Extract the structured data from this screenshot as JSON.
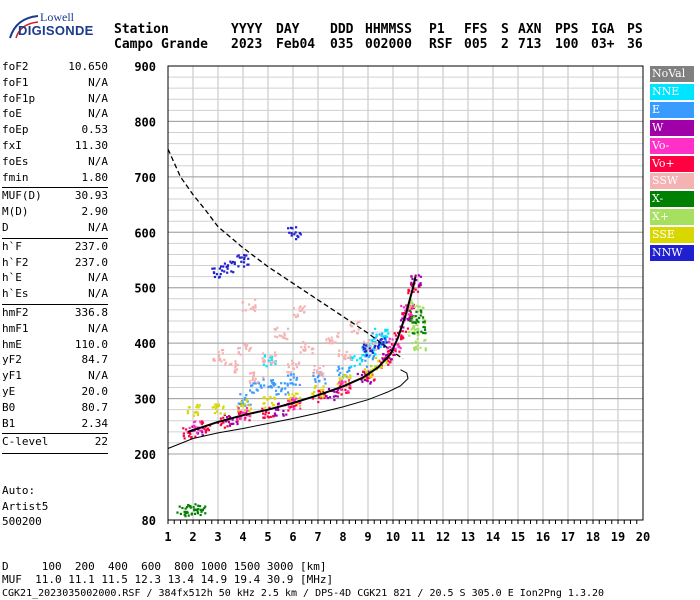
{
  "logo": {
    "line1": "Lowell",
    "line2": "DIGISONDE"
  },
  "header": {
    "row1": [
      "Station",
      "YYYY",
      "DAY",
      "DDD",
      "HHMMSS",
      "P1",
      "FFS",
      "S",
      "AXN",
      "PPS",
      "IGA",
      "PS"
    ],
    "row2": [
      "Campo Grande",
      "2023",
      "Feb04",
      "035",
      "002000",
      "RSF",
      "005",
      "2",
      "713",
      "100",
      "03+",
      "36"
    ]
  },
  "params": {
    "group1": [
      {
        "k": "foF2",
        "v": "10.650"
      },
      {
        "k": "foF1",
        "v": "N/A"
      },
      {
        "k": "foF1p",
        "v": "N/A"
      },
      {
        "k": "foE",
        "v": "N/A"
      },
      {
        "k": "foEp",
        "v": "0.53"
      },
      {
        "k": "fxI",
        "v": "11.30"
      },
      {
        "k": "foEs",
        "v": "N/A"
      },
      {
        "k": "fmin",
        "v": "1.80"
      }
    ],
    "group2": [
      {
        "k": "MUF(D)",
        "v": "30.93"
      },
      {
        "k": "M(D)",
        "v": "2.90"
      },
      {
        "k": "D",
        "v": "N/A"
      }
    ],
    "group3": [
      {
        "k": "h`F",
        "v": "237.0"
      },
      {
        "k": "h`F2",
        "v": "237.0"
      },
      {
        "k": "h`E",
        "v": "N/A"
      },
      {
        "k": "h`Es",
        "v": "N/A"
      }
    ],
    "group4": [
      {
        "k": "hmF2",
        "v": "336.8"
      },
      {
        "k": "hmF1",
        "v": "N/A"
      },
      {
        "k": "hmE",
        "v": "110.0"
      },
      {
        "k": "yF2",
        "v": "84.7"
      },
      {
        "k": "yF1",
        "v": "N/A"
      },
      {
        "k": "yE",
        "v": "20.0"
      },
      {
        "k": "B0",
        "v": "80.7"
      },
      {
        "k": "B1",
        "v": "2.34"
      }
    ],
    "group5": [
      {
        "k": "C-level",
        "v": "22"
      }
    ]
  },
  "auto": {
    "line1": "Auto:",
    "line2": "Artist5",
    "line3": "500200"
  },
  "legend": [
    {
      "label": "NoVal",
      "bg": "#808080",
      "fg": "#ffffff"
    },
    {
      "label": "NNE",
      "bg": "#00e5ff",
      "fg": "#ffffff"
    },
    {
      "label": "E",
      "bg": "#3a9bff",
      "fg": "#ffffff"
    },
    {
      "label": "W",
      "bg": "#a000a8",
      "fg": "#ffffff"
    },
    {
      "label": "Vo-",
      "bg": "#ff30c8",
      "fg": "#ffffff"
    },
    {
      "label": "Vo+",
      "bg": "#ff0040",
      "fg": "#ffffff"
    },
    {
      "label": "SSW",
      "bg": "#f5b2b2",
      "fg": "#ffffff"
    },
    {
      "label": "X-",
      "bg": "#008000",
      "fg": "#ffffff"
    },
    {
      "label": "X+",
      "bg": "#a6e060",
      "fg": "#ffffff"
    },
    {
      "label": "SSE",
      "bg": "#d8d800",
      "fg": "#ffffff"
    },
    {
      "label": "NNW",
      "bg": "#2020d0",
      "fg": "#ffffff"
    }
  ],
  "footer": {
    "d_row": "D     100  200  400  600  800 1000 1500 3000 [km]",
    "muf_row": "MUF  11.0 11.1 11.5 12.3 13.4 14.9 19.4 30.9 [MHz]",
    "info_row": "CGK21_2023035002000.RSF / 384fx512h 50 kHz 2.5 km / DPS-4D CGK21 821 / 20.5 S 305.0 E Ion2Png 1.3.20"
  },
  "chart_data": {
    "type": "scatter",
    "xlim": [
      1,
      20
    ],
    "ylim": [
      80,
      900
    ],
    "x_ticks": [
      1,
      2,
      3,
      4,
      5,
      6,
      7,
      8,
      9,
      10,
      11,
      12,
      13,
      14,
      15,
      16,
      17,
      18,
      19,
      20
    ],
    "y_ticks": [
      80,
      200,
      300,
      400,
      500,
      600,
      700,
      800,
      900
    ],
    "grid": true,
    "legend_position": "right",
    "series": [
      {
        "name": "Vo+",
        "color": "#ff0040",
        "points": [
          [
            1.8,
            240
          ],
          [
            2.5,
            250
          ],
          [
            3.2,
            260
          ],
          [
            4,
            268
          ],
          [
            5,
            278
          ],
          [
            6,
            290
          ],
          [
            7,
            305
          ],
          [
            8,
            320
          ],
          [
            9,
            345
          ],
          [
            9.6,
            365
          ],
          [
            10,
            390
          ],
          [
            10.3,
            420
          ],
          [
            10.6,
            460
          ],
          [
            10.8,
            500
          ]
        ]
      },
      {
        "name": "W",
        "color": "#a000a8",
        "points": [
          [
            2.2,
            245
          ],
          [
            3.5,
            262
          ],
          [
            5.5,
            282
          ],
          [
            7.5,
            310
          ],
          [
            8.8,
            340
          ],
          [
            9.8,
            380
          ],
          [
            10.5,
            440
          ],
          [
            10.9,
            515
          ]
        ]
      },
      {
        "name": "E",
        "color": "#3a9bff",
        "points": [
          [
            4,
            300
          ],
          [
            4.5,
            320
          ],
          [
            5,
            330
          ],
          [
            5.5,
            320
          ],
          [
            6,
            335
          ],
          [
            7,
            340
          ],
          [
            8,
            350
          ],
          [
            9,
            370
          ],
          [
            9.4,
            410
          ]
        ]
      },
      {
        "name": "NNE",
        "color": "#00e5ff",
        "points": [
          [
            8.5,
            370
          ],
          [
            9,
            390
          ],
          [
            9.5,
            420
          ],
          [
            9.2,
            400
          ],
          [
            5,
            370
          ]
        ]
      },
      {
        "name": "SSW",
        "color": "#f5b2b2",
        "points": [
          [
            3,
            380
          ],
          [
            3.5,
            360
          ],
          [
            4,
            390
          ],
          [
            4.5,
            340
          ],
          [
            5,
            375
          ],
          [
            5.5,
            420
          ],
          [
            6,
            360
          ],
          [
            6.5,
            395
          ],
          [
            7,
            350
          ],
          [
            7.5,
            410
          ],
          [
            8,
            380
          ],
          [
            8.5,
            430
          ],
          [
            9,
            400
          ],
          [
            4.2,
            470
          ],
          [
            6.2,
            460
          ]
        ]
      },
      {
        "name": "SSE",
        "color": "#d8d800",
        "points": [
          [
            2,
            280
          ],
          [
            3,
            285
          ],
          [
            4,
            290
          ],
          [
            5,
            295
          ],
          [
            6,
            300
          ],
          [
            7,
            315
          ],
          [
            8,
            335
          ],
          [
            9,
            350
          ],
          [
            9.5,
            365
          ]
        ]
      },
      {
        "name": "X+",
        "color": "#a6e060",
        "points": [
          [
            10.8,
            420
          ],
          [
            11,
            440
          ],
          [
            10.9,
            470
          ],
          [
            11,
            400
          ]
        ]
      },
      {
        "name": "X-",
        "color": "#008000",
        "points": [
          [
            1.6,
            100
          ],
          [
            1.9,
            100
          ],
          [
            2.2,
            100
          ],
          [
            10.9,
            450
          ],
          [
            11,
            430
          ]
        ]
      },
      {
        "name": "NNW",
        "color": "#2020d0",
        "points": [
          [
            3,
            530
          ],
          [
            3.5,
            540
          ],
          [
            4,
            550
          ],
          [
            6,
            600
          ],
          [
            9,
            390
          ],
          [
            9.6,
            400
          ]
        ]
      },
      {
        "name": "Vo-",
        "color": "#ff30c8",
        "points": [
          [
            2,
            250
          ],
          [
            4,
            275
          ],
          [
            6,
            292
          ],
          [
            8,
            325
          ],
          [
            10,
            400
          ],
          [
            10.5,
            460
          ]
        ]
      }
    ],
    "curves": [
      {
        "name": "trace",
        "style": "solid",
        "color": "#000000",
        "width": 2,
        "points": [
          [
            1.8,
            240
          ],
          [
            3,
            258
          ],
          [
            4,
            270
          ],
          [
            5,
            280
          ],
          [
            6,
            292
          ],
          [
            7,
            306
          ],
          [
            8,
            322
          ],
          [
            8.8,
            338
          ],
          [
            9.4,
            356
          ],
          [
            9.9,
            380
          ],
          [
            10.2,
            410
          ],
          [
            10.5,
            450
          ],
          [
            10.8,
            500
          ],
          [
            10.9,
            520
          ]
        ]
      },
      {
        "name": "profile",
        "style": "solid",
        "color": "#000000",
        "width": 1,
        "points": [
          [
            1,
            210
          ],
          [
            2,
            228
          ],
          [
            3,
            238
          ],
          [
            4,
            246
          ],
          [
            5,
            255
          ],
          [
            6,
            264
          ],
          [
            7,
            274
          ],
          [
            8,
            285
          ],
          [
            9,
            298
          ],
          [
            9.8,
            312
          ],
          [
            10.3,
            323
          ],
          [
            10.6,
            336
          ],
          [
            10.55,
            346
          ],
          [
            10.3,
            352
          ]
        ]
      },
      {
        "name": "muf-curve",
        "style": "dashed",
        "color": "#000000",
        "width": 1.3,
        "points": [
          [
            1,
            750
          ],
          [
            1.5,
            700
          ],
          [
            2,
            668
          ],
          [
            2.5,
            640
          ],
          [
            3,
            610
          ],
          [
            4,
            572
          ],
          [
            5,
            538
          ],
          [
            6,
            508
          ],
          [
            7,
            478
          ],
          [
            8,
            448
          ],
          [
            9,
            418
          ],
          [
            9.6,
            398
          ],
          [
            10,
            384
          ],
          [
            10.4,
            372
          ]
        ]
      }
    ]
  }
}
